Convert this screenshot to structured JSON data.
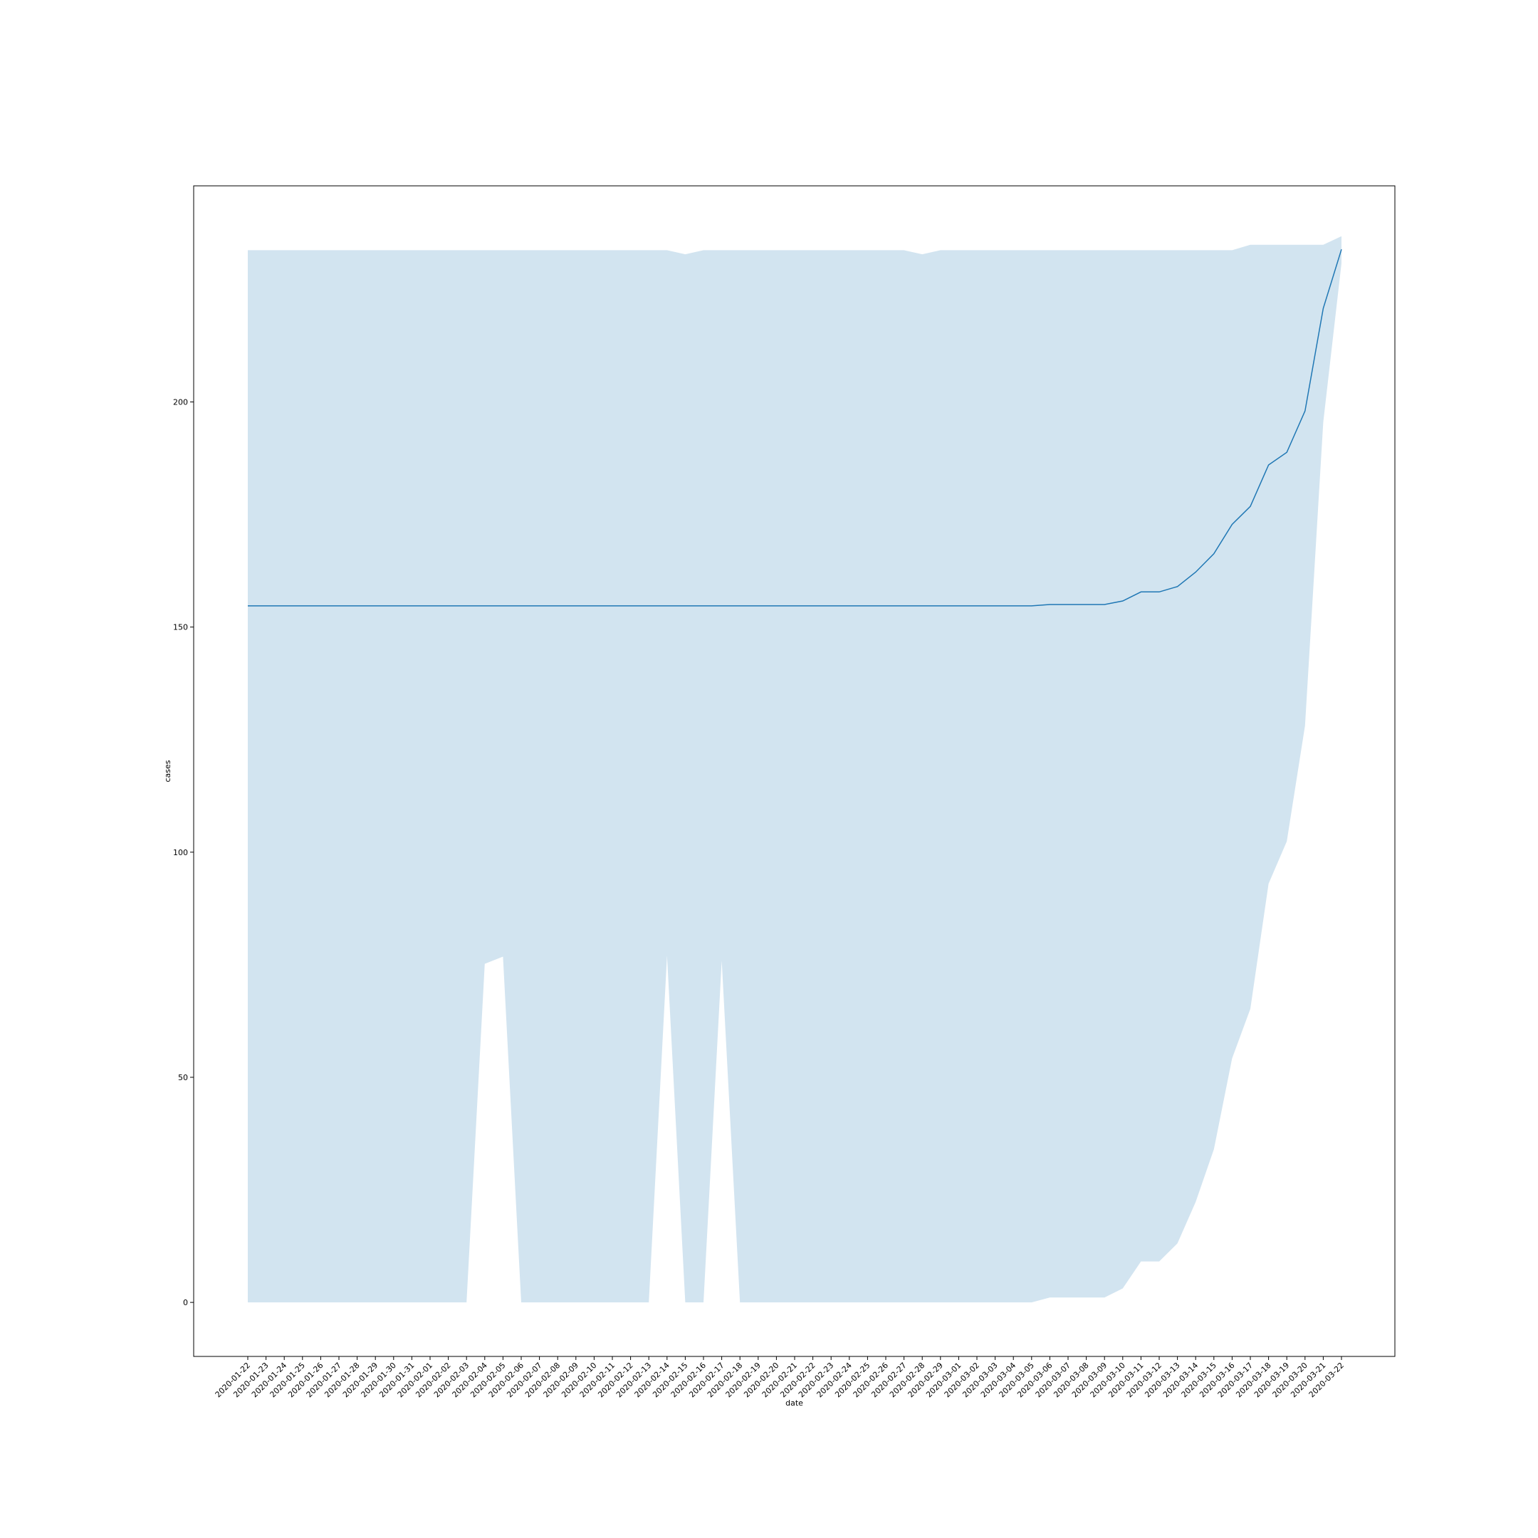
{
  "chart_data": {
    "type": "line",
    "xlabel": "date",
    "ylabel": "cases",
    "ylim": [
      -12,
      248
    ],
    "yticks": [
      0,
      50,
      100,
      150,
      200
    ],
    "grid": false,
    "legend": "none",
    "colors": {
      "line": "#1f77b4",
      "band": "#1f77b4",
      "axes": "#000000",
      "background": "#ffffff"
    },
    "x": [
      "2020-01-22",
      "2020-01-23",
      "2020-01-24",
      "2020-01-25",
      "2020-01-26",
      "2020-01-27",
      "2020-01-28",
      "2020-01-29",
      "2020-01-30",
      "2020-01-31",
      "2020-02-01",
      "2020-02-02",
      "2020-02-03",
      "2020-02-04",
      "2020-02-05",
      "2020-02-06",
      "2020-02-07",
      "2020-02-08",
      "2020-02-09",
      "2020-02-10",
      "2020-02-11",
      "2020-02-12",
      "2020-02-13",
      "2020-02-14",
      "2020-02-15",
      "2020-02-16",
      "2020-02-17",
      "2020-02-18",
      "2020-02-19",
      "2020-02-20",
      "2020-02-21",
      "2020-02-22",
      "2020-02-23",
      "2020-02-24",
      "2020-02-25",
      "2020-02-26",
      "2020-02-27",
      "2020-02-28",
      "2020-02-29",
      "2020-03-01",
      "2020-03-02",
      "2020-03-03",
      "2020-03-04",
      "2020-03-05",
      "2020-03-06",
      "2020-03-07",
      "2020-03-08",
      "2020-03-09",
      "2020-03-10",
      "2020-03-11",
      "2020-03-12",
      "2020-03-13",
      "2020-03-14",
      "2020-03-15",
      "2020-03-16",
      "2020-03-17",
      "2020-03-18",
      "2020-03-19",
      "2020-03-20",
      "2020-03-21",
      "2020-03-22"
    ],
    "series": [
      {
        "values": [
          154.7,
          154.7,
          154.7,
          154.7,
          154.7,
          154.7,
          154.7,
          154.7,
          154.7,
          154.7,
          154.7,
          154.7,
          154.7,
          154.7,
          154.7,
          154.7,
          154.7,
          154.7,
          154.7,
          154.7,
          154.7,
          154.7,
          154.7,
          154.7,
          154.7,
          154.7,
          154.7,
          154.7,
          154.7,
          154.7,
          154.7,
          154.7,
          154.7,
          154.7,
          154.7,
          154.7,
          154.7,
          154.7,
          154.7,
          154.7,
          154.7,
          154.7,
          154.7,
          154.7,
          155.0,
          155.0,
          155.0,
          155.0,
          155.8,
          157.8,
          157.8,
          159.0,
          162.2,
          166.3,
          172.8,
          176.8,
          186.0,
          188.8,
          198.0,
          220.8,
          233.9
        ],
        "ci_lower": [
          0,
          0,
          0,
          0,
          0,
          0,
          0,
          0,
          0,
          0,
          0,
          0,
          0,
          75.2,
          76.8,
          0,
          0,
          0,
          0,
          0,
          0,
          0,
          0,
          77.0,
          0,
          0,
          75.9,
          0,
          0,
          0,
          0,
          0,
          0,
          0,
          0,
          0,
          0,
          0,
          0,
          0,
          0,
          0,
          0,
          0,
          1.1,
          1.1,
          1.1,
          1.1,
          3.1,
          9.1,
          9.1,
          13.1,
          22.3,
          34.0,
          54.2,
          65.2,
          93.0,
          102.4,
          128.1,
          195.5,
          230.8
        ],
        "ci_upper": [
          233.7,
          233.7,
          233.7,
          233.7,
          233.7,
          233.7,
          233.7,
          233.7,
          233.7,
          233.7,
          233.7,
          233.7,
          233.7,
          233.7,
          233.7,
          233.7,
          233.7,
          233.7,
          233.7,
          233.7,
          233.7,
          233.7,
          233.7,
          233.7,
          232.8,
          233.7,
          233.7,
          233.7,
          233.7,
          233.7,
          233.7,
          233.7,
          233.7,
          233.7,
          233.7,
          233.7,
          233.7,
          232.8,
          233.7,
          233.7,
          233.7,
          233.7,
          233.7,
          233.7,
          233.7,
          233.7,
          233.7,
          233.7,
          233.7,
          233.7,
          233.7,
          233.7,
          233.7,
          233.7,
          233.7,
          234.9,
          234.9,
          234.9,
          234.9,
          234.9,
          236.8
        ]
      }
    ]
  }
}
